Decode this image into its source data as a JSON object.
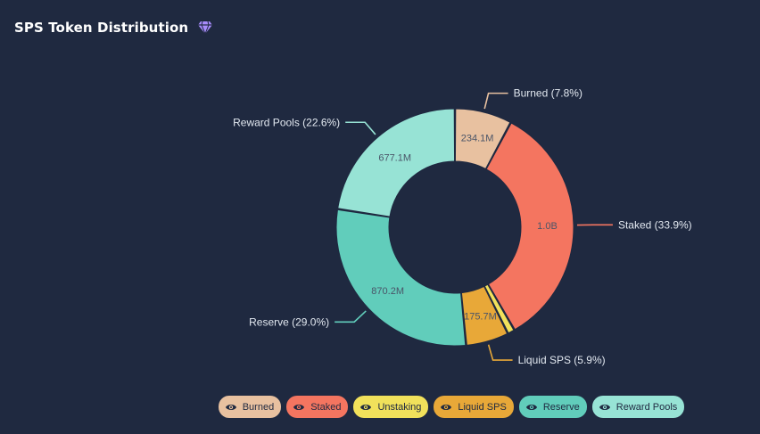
{
  "header": {
    "title": "SPS Token Distribution",
    "icon": "diamond-gem-icon",
    "icon_color": "#a78bfa"
  },
  "chart_data": {
    "type": "pie",
    "donut": true,
    "legend_position": "bottom",
    "slices": [
      {
        "name": "Burned",
        "value_label": "234.1M",
        "value": 234.1,
        "percent": 7.8,
        "label": "Burned (7.8%)",
        "color": "#e8c1a0"
      },
      {
        "name": "Staked",
        "value_label": "1.0B",
        "value": 1017,
        "percent": 33.9,
        "label": "Staked (33.9%)",
        "color": "#f47560"
      },
      {
        "name": "Unstaking",
        "value_label": "",
        "value": 30,
        "percent": 1.0,
        "label": "",
        "color": "#f1e15b"
      },
      {
        "name": "Liquid SPS",
        "value_label": "175.7M",
        "value": 175.7,
        "percent": 5.9,
        "label": "Liquid SPS (5.9%)",
        "color": "#e8a838"
      },
      {
        "name": "Reserve",
        "value_label": "870.2M",
        "value": 870.2,
        "percent": 29.0,
        "label": "Reserve (29.0%)",
        "color": "#61cdbb"
      },
      {
        "name": "Reward Pools",
        "value_label": "677.1M",
        "value": 677.1,
        "percent": 22.6,
        "label": "Reward Pools (22.6%)",
        "color": "#97e3d5"
      }
    ]
  },
  "legend": {
    "icon": "eye-icon",
    "items": [
      {
        "label": "Burned",
        "color": "#e8c1a0"
      },
      {
        "label": "Staked",
        "color": "#f47560"
      },
      {
        "label": "Unstaking",
        "color": "#f1e15b"
      },
      {
        "label": "Liquid SPS",
        "color": "#e8a838"
      },
      {
        "label": "Reserve",
        "color": "#61cdbb"
      },
      {
        "label": "Reward Pools",
        "color": "#97e3d5"
      }
    ]
  }
}
